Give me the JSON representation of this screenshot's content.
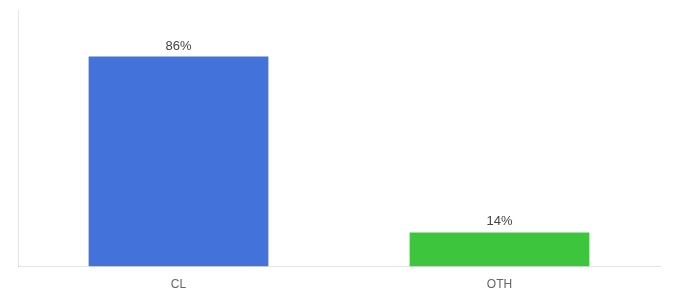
{
  "chart_data": {
    "type": "bar",
    "categories": [
      "CL",
      "OTH"
    ],
    "values": [
      86,
      14
    ],
    "value_labels": [
      "86%",
      "14%"
    ],
    "colors": [
      "#4472db",
      "#3dc63d"
    ],
    "ylim": [
      0,
      105
    ],
    "grid": false,
    "data_labels": true,
    "tick_labels": "x"
  }
}
